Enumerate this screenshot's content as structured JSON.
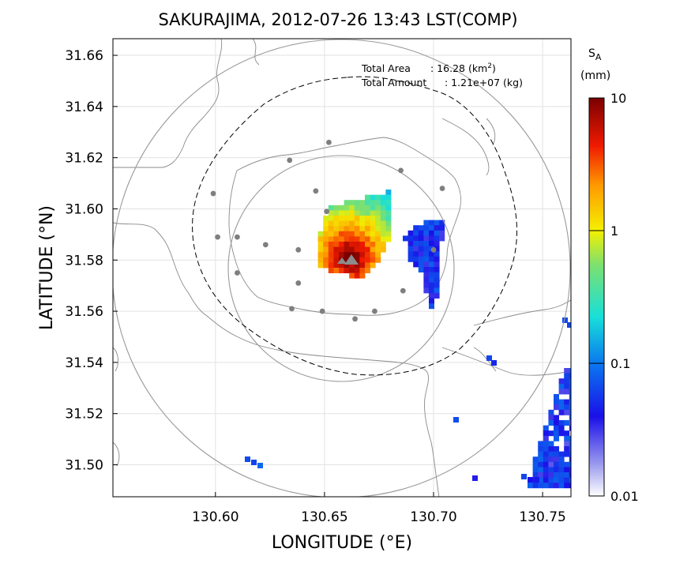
{
  "title": "SAKURAJIMA, 2012-07-26 13:43 LST(COMP)",
  "x_axis": {
    "label": "LONGITUDE (°E)",
    "range": [
      130.553,
      130.763
    ],
    "ticks": [
      {
        "value": 130.6,
        "label": "130.60"
      },
      {
        "value": 130.65,
        "label": "130.65"
      },
      {
        "value": 130.7,
        "label": "130.70"
      },
      {
        "value": 130.75,
        "label": "130.75"
      }
    ]
  },
  "y_axis": {
    "label": "LATITUDE (°N)",
    "range": [
      31.4875,
      31.6665
    ],
    "ticks": [
      {
        "value": 31.66,
        "label": "31.66"
      },
      {
        "value": 31.64,
        "label": "31.64"
      },
      {
        "value": 31.62,
        "label": "31.62"
      },
      {
        "value": 31.6,
        "label": "31.60"
      },
      {
        "value": 31.58,
        "label": "31.58"
      },
      {
        "value": 31.56,
        "label": "31.56"
      },
      {
        "value": 31.54,
        "label": "31.54"
      },
      {
        "value": 31.52,
        "label": "31.52"
      },
      {
        "value": 31.5,
        "label": "31.50"
      }
    ]
  },
  "grid": true,
  "annotation": {
    "area_label": "Total Area",
    "area_value": ": 16.28 (km",
    "area_sup": "2",
    "area_close": ")",
    "amount_label": "Total Amount",
    "amount_value": ": 1.21e+07 (kg)"
  },
  "colorbar": {
    "label_main": "S",
    "label_sub": "A",
    "unit": "(mm)",
    "scale": "log",
    "min": 0.01,
    "max": 10,
    "ticks": [
      {
        "value": 10,
        "label": "10"
      },
      {
        "value": 1,
        "label": "1"
      },
      {
        "value": 0.1,
        "label": "0.1"
      },
      {
        "value": 0.01,
        "label": "0.01"
      }
    ]
  },
  "map_data": {
    "type": "heatmap",
    "vent": {
      "lon": 130.665,
      "lat": 31.58
    },
    "range_rings": [
      {
        "center": [
          130.659,
          31.5775
        ],
        "radius_deg_lat": 0.045
      },
      {
        "center": [
          130.659,
          31.5775
        ],
        "radius_deg_lat": 0.088
      }
    ],
    "stations": [
      [
        130.652,
        31.626
      ],
      [
        130.634,
        31.619
      ],
      [
        130.685,
        31.615
      ],
      [
        130.599,
        31.606
      ],
      [
        130.646,
        31.607
      ],
      [
        130.704,
        31.608
      ],
      [
        130.651,
        31.599
      ],
      [
        130.601,
        31.589
      ],
      [
        130.61,
        31.589
      ],
      [
        130.623,
        31.586
      ],
      [
        130.638,
        31.584
      ],
      [
        130.7,
        31.584
      ],
      [
        130.61,
        31.575
      ],
      [
        130.638,
        31.571
      ],
      [
        130.686,
        31.568
      ],
      [
        130.635,
        31.561
      ],
      [
        130.649,
        31.56
      ],
      [
        130.673,
        31.56
      ],
      [
        130.664,
        31.557
      ]
    ]
  }
}
